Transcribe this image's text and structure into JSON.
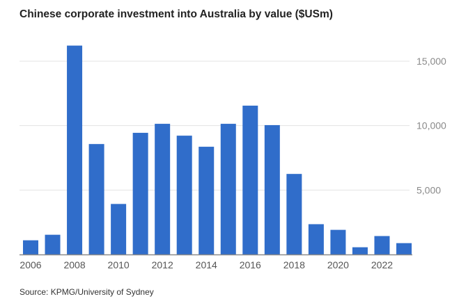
{
  "chart_data": {
    "type": "bar",
    "title": "Chinese corporate investment into Australia by value ($USm)",
    "source": "Source: KPMG/University of Sydney",
    "xlabel": "",
    "ylabel": "",
    "ylim": [
      0,
      16500
    ],
    "grid": true,
    "y_ticks": [
      {
        "value": 5000,
        "label": "5,000"
      },
      {
        "value": 10000,
        "label": "10,000"
      },
      {
        "value": 15000,
        "label": "15,000"
      }
    ],
    "x_tick_labels": [
      "2006",
      "2008",
      "2010",
      "2012",
      "2014",
      "2016",
      "2018",
      "2020",
      "2022"
    ],
    "categories": [
      "2006",
      "2007",
      "2008",
      "2009",
      "2010",
      "2011",
      "2012",
      "2013",
      "2014",
      "2015",
      "2016",
      "2017",
      "2018",
      "2019",
      "2020",
      "2021",
      "2022",
      "2023"
    ],
    "values": [
      1100,
      1530,
      16210,
      8570,
      3920,
      9440,
      10140,
      9220,
      8360,
      10140,
      11550,
      10040,
      6250,
      2350,
      1910,
      560,
      1430,
      880
    ],
    "bar_color": "#306dca",
    "grid_color": "#e3e3e3",
    "axis_color": "#8a8a8a"
  }
}
